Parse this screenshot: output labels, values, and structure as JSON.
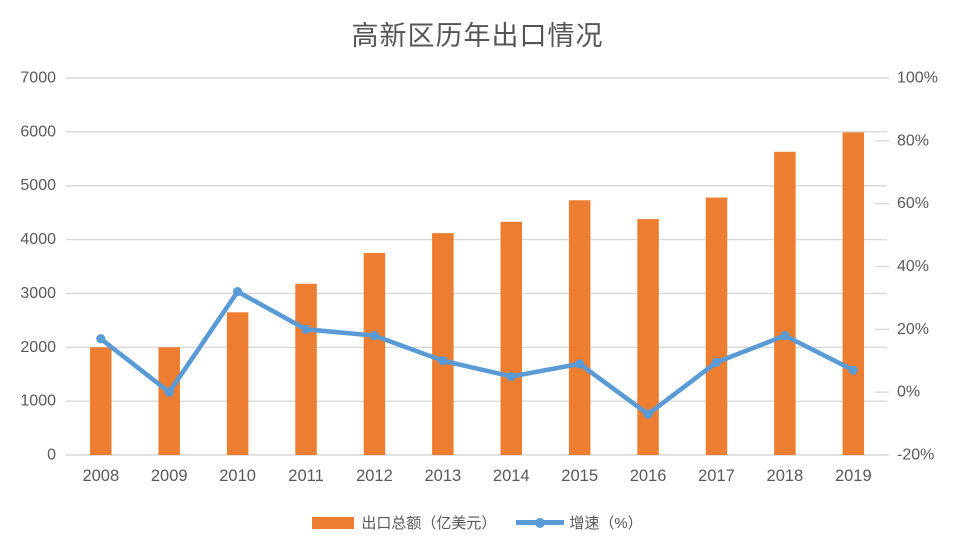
{
  "chart_data": {
    "type": "bar",
    "title": "高新区历年出口情况",
    "categories": [
      "2008",
      "2009",
      "2010",
      "2011",
      "2012",
      "2013",
      "2014",
      "2015",
      "2016",
      "2017",
      "2018",
      "2019"
    ],
    "series": [
      {
        "name": "出口总额（亿美元）",
        "type": "bar",
        "axis": "left",
        "color": "#ED7D31",
        "values": [
          2000,
          2000,
          2650,
          3180,
          3750,
          4120,
          4330,
          4730,
          4380,
          4780,
          5630,
          5990
        ]
      },
      {
        "name": "增速（%）",
        "type": "line",
        "axis": "right",
        "color": "#5B9BD5",
        "values": [
          17,
          0,
          32,
          20,
          18,
          10,
          5,
          9,
          -7,
          9.5,
          18,
          7
        ]
      }
    ],
    "left_axis": {
      "min": 0,
      "max": 7000,
      "step": 1000,
      "tick_labels": [
        "0",
        "1000",
        "2000",
        "3000",
        "4000",
        "5000",
        "6000",
        "7000"
      ]
    },
    "right_axis": {
      "min": -20,
      "max": 100,
      "step": 20,
      "tick_labels": [
        "-20%",
        "0%",
        "20%",
        "40%",
        "60%",
        "80%",
        "100%"
      ]
    },
    "grid": true,
    "grid_color": "#D9D9D9",
    "text_color": "#595959",
    "legend_position": "bottom"
  }
}
